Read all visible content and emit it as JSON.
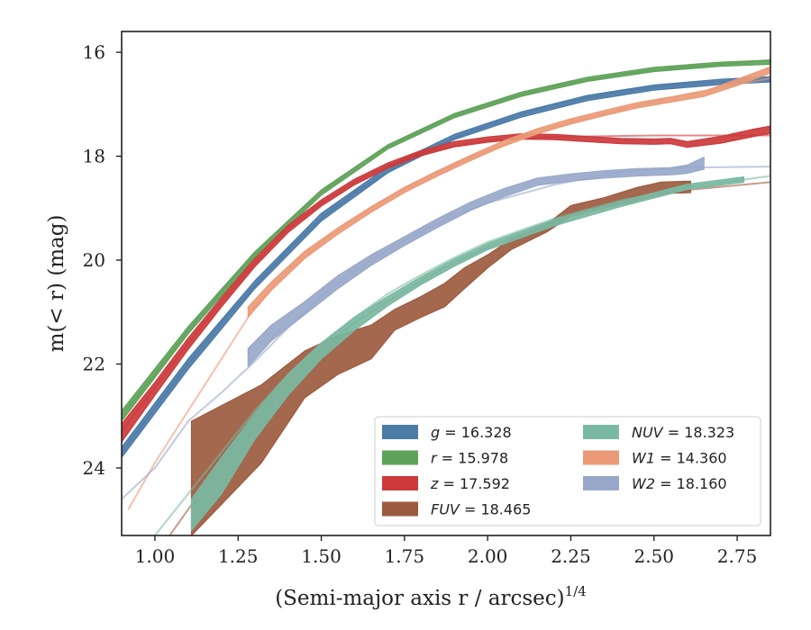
{
  "chart_data": {
    "type": "line",
    "xlabel": "(Semi-major axis r / arcsec)",
    "xlabel_exponent": "1/4",
    "ylabel": "m(< r) (mag)",
    "xlim": [
      0.9,
      2.85
    ],
    "ylim": [
      25.3,
      15.6
    ],
    "y_inverted": true,
    "grid": false,
    "legend_placement": "lower-right",
    "x_ticks": [
      {
        "value": 1.0,
        "label": "1.00"
      },
      {
        "value": 1.25,
        "label": "1.25"
      },
      {
        "value": 1.5,
        "label": "1.50"
      },
      {
        "value": 1.75,
        "label": "1.75"
      },
      {
        "value": 2.0,
        "label": "2.00"
      },
      {
        "value": 2.25,
        "label": "2.25"
      },
      {
        "value": 2.5,
        "label": "2.50"
      },
      {
        "value": 2.75,
        "label": "2.75"
      }
    ],
    "y_ticks": [
      {
        "value": 16,
        "label": "16"
      },
      {
        "value": 18,
        "label": "18"
      },
      {
        "value": 20,
        "label": "20"
      },
      {
        "value": 22,
        "label": "22"
      },
      {
        "value": 24,
        "label": "24"
      }
    ],
    "series": [
      {
        "name": "g = 16.328",
        "legend_var": "g",
        "legend_value": "= 16.328",
        "color": "#4C7BA8",
        "model": [
          [
            0.9,
            23.7
          ],
          [
            1.0,
            22.85
          ],
          [
            1.1,
            22.0
          ],
          [
            1.2,
            21.2
          ],
          [
            1.3,
            20.5
          ],
          [
            1.4,
            19.8
          ],
          [
            1.5,
            19.2
          ],
          [
            1.6,
            18.7
          ],
          [
            1.7,
            18.3
          ],
          [
            1.8,
            17.95
          ],
          [
            1.9,
            17.65
          ],
          [
            2.0,
            17.4
          ],
          [
            2.2,
            17.0
          ],
          [
            2.4,
            16.75
          ],
          [
            2.6,
            16.6
          ],
          [
            2.85,
            16.52
          ]
        ],
        "band": [
          [
            0.9,
            23.8,
            23.6
          ],
          [
            1.1,
            22.1,
            21.9
          ],
          [
            1.3,
            20.55,
            20.4
          ],
          [
            1.5,
            19.25,
            19.1
          ],
          [
            1.7,
            18.32,
            18.2
          ],
          [
            1.9,
            17.68,
            17.58
          ],
          [
            2.1,
            17.25,
            17.15
          ],
          [
            2.3,
            16.93,
            16.83
          ],
          [
            2.5,
            16.73,
            16.63
          ],
          [
            2.7,
            16.62,
            16.52
          ],
          [
            2.85,
            16.57,
            16.47
          ]
        ]
      },
      {
        "name": "r = 15.978",
        "legend_var": "r",
        "legend_value": "= 15.978",
        "color": "#5FA35A",
        "model": [
          [
            0.9,
            23.0
          ],
          [
            1.0,
            22.2
          ],
          [
            1.1,
            21.35
          ],
          [
            1.2,
            20.6
          ],
          [
            1.3,
            19.9
          ],
          [
            1.4,
            19.25
          ],
          [
            1.5,
            18.7
          ],
          [
            1.6,
            18.22
          ],
          [
            1.7,
            17.82
          ],
          [
            1.8,
            17.5
          ],
          [
            1.9,
            17.22
          ],
          [
            2.0,
            17.0
          ],
          [
            2.2,
            16.65
          ],
          [
            2.4,
            16.42
          ],
          [
            2.6,
            16.28
          ],
          [
            2.85,
            16.15
          ]
        ],
        "band": [
          [
            0.9,
            23.1,
            22.9
          ],
          [
            1.1,
            21.42,
            21.28
          ],
          [
            1.3,
            19.96,
            19.84
          ],
          [
            1.5,
            18.75,
            18.65
          ],
          [
            1.7,
            17.86,
            17.78
          ],
          [
            1.9,
            17.26,
            17.18
          ],
          [
            2.1,
            16.85,
            16.77
          ],
          [
            2.3,
            16.56,
            16.48
          ],
          [
            2.5,
            16.37,
            16.29
          ],
          [
            2.7,
            16.27,
            16.19
          ],
          [
            2.85,
            16.23,
            16.15
          ]
        ]
      },
      {
        "name": "z = 17.592",
        "legend_var": "z",
        "legend_value": "= 17.592",
        "color": "#CC3A3C",
        "model": [
          [
            0.9,
            23.3
          ],
          [
            1.0,
            22.45
          ],
          [
            1.1,
            21.6
          ],
          [
            1.2,
            20.8
          ],
          [
            1.3,
            20.05
          ],
          [
            1.4,
            19.4
          ],
          [
            1.5,
            18.9
          ],
          [
            1.6,
            18.5
          ],
          [
            1.7,
            18.18
          ],
          [
            1.8,
            17.95
          ],
          [
            1.9,
            17.8
          ],
          [
            2.0,
            17.7
          ],
          [
            2.2,
            17.63
          ],
          [
            2.5,
            17.6
          ],
          [
            2.85,
            17.6
          ]
        ],
        "band": [
          [
            0.9,
            23.5,
            23.15
          ],
          [
            1.0,
            22.6,
            22.35
          ],
          [
            1.1,
            21.72,
            21.5
          ],
          [
            1.2,
            20.9,
            20.72
          ],
          [
            1.3,
            20.13,
            19.97
          ],
          [
            1.4,
            19.47,
            19.33
          ],
          [
            1.5,
            18.96,
            18.84
          ],
          [
            1.6,
            18.55,
            18.44
          ],
          [
            1.7,
            18.23,
            18.13
          ],
          [
            1.8,
            17.99,
            17.89
          ],
          [
            1.9,
            17.82,
            17.72
          ],
          [
            2.0,
            17.73,
            17.63
          ],
          [
            2.1,
            17.67,
            17.57
          ],
          [
            2.2,
            17.68,
            17.58
          ],
          [
            2.3,
            17.72,
            17.62
          ],
          [
            2.4,
            17.76,
            17.66
          ],
          [
            2.5,
            17.77,
            17.67
          ],
          [
            2.55,
            17.76,
            17.66
          ],
          [
            2.6,
            17.83,
            17.72
          ],
          [
            2.7,
            17.75,
            17.62
          ],
          [
            2.8,
            17.62,
            17.48
          ],
          [
            2.85,
            17.56,
            17.42
          ]
        ]
      },
      {
        "name": "FUV = 18.465",
        "legend_var": "FUV",
        "legend_value": "= 18.465",
        "color": "#9C5B3F",
        "model": [
          [
            0.9,
            26.5
          ],
          [
            1.0,
            25.7
          ],
          [
            1.1,
            24.8
          ],
          [
            1.2,
            23.9
          ],
          [
            1.3,
            23.0
          ],
          [
            1.4,
            22.3
          ],
          [
            1.5,
            21.7
          ],
          [
            1.6,
            21.2
          ],
          [
            1.7,
            20.8
          ],
          [
            1.8,
            20.4
          ],
          [
            1.9,
            20.05
          ],
          [
            2.0,
            19.75
          ],
          [
            2.2,
            19.25
          ],
          [
            2.4,
            18.9
          ],
          [
            2.6,
            18.65
          ],
          [
            2.85,
            18.5
          ]
        ],
        "band": [
          [
            1.11,
            23.1,
            25.3
          ],
          [
            1.2,
            22.8,
            24.7
          ],
          [
            1.32,
            22.4,
            23.9
          ],
          [
            1.45,
            21.75,
            22.65
          ],
          [
            1.55,
            21.45,
            22.2
          ],
          [
            1.65,
            21.25,
            21.9
          ],
          [
            1.72,
            20.95,
            21.35
          ],
          [
            1.8,
            20.7,
            21.1
          ],
          [
            1.87,
            20.45,
            20.9
          ],
          [
            1.93,
            20.15,
            20.55
          ],
          [
            2.0,
            19.9,
            20.15
          ],
          [
            2.07,
            19.6,
            19.8
          ],
          [
            2.18,
            19.3,
            19.45
          ],
          [
            2.25,
            18.95,
            19.15
          ],
          [
            2.35,
            18.8,
            19.0
          ],
          [
            2.45,
            18.6,
            18.85
          ],
          [
            2.52,
            18.5,
            18.72
          ],
          [
            2.61,
            18.48,
            18.7
          ]
        ]
      },
      {
        "name": "NUV = 18.323",
        "legend_var": "NUV",
        "legend_value": "= 18.323",
        "color": "#79B9A2",
        "model": [
          [
            0.9,
            26.0
          ],
          [
            1.0,
            25.3
          ],
          [
            1.1,
            24.5
          ],
          [
            1.2,
            23.7
          ],
          [
            1.3,
            22.9
          ],
          [
            1.4,
            22.2
          ],
          [
            1.5,
            21.6
          ],
          [
            1.6,
            21.1
          ],
          [
            1.7,
            20.65
          ],
          [
            1.8,
            20.28
          ],
          [
            1.9,
            19.95
          ],
          [
            2.0,
            19.65
          ],
          [
            2.2,
            19.2
          ],
          [
            2.4,
            18.85
          ],
          [
            2.6,
            18.6
          ],
          [
            2.85,
            18.38
          ]
        ],
        "band": [
          [
            1.11,
            24.6,
            25.2
          ],
          [
            1.2,
            23.8,
            24.5
          ],
          [
            1.3,
            22.95,
            23.45
          ],
          [
            1.4,
            22.2,
            22.6
          ],
          [
            1.5,
            21.6,
            21.9
          ],
          [
            1.6,
            21.1,
            21.35
          ],
          [
            1.7,
            20.7,
            20.88
          ],
          [
            1.8,
            20.32,
            20.47
          ],
          [
            1.9,
            19.98,
            20.12
          ],
          [
            2.0,
            19.68,
            19.8
          ],
          [
            2.2,
            19.22,
            19.34
          ],
          [
            2.4,
            18.87,
            18.97
          ],
          [
            2.6,
            18.54,
            18.64
          ],
          [
            2.77,
            18.4,
            18.5
          ]
        ]
      },
      {
        "name": "W1 = 14.360",
        "legend_var": "W1",
        "legend_value": "= 14.360",
        "color": "#EB9A77",
        "model": [
          [
            0.92,
            24.8
          ],
          [
            1.0,
            23.9
          ],
          [
            1.1,
            22.9
          ],
          [
            1.2,
            21.9
          ],
          [
            1.3,
            20.9
          ],
          [
            1.4,
            20.2
          ],
          [
            1.5,
            19.65
          ],
          [
            1.6,
            19.2
          ],
          [
            1.7,
            18.8
          ],
          [
            1.8,
            18.45
          ],
          [
            1.9,
            18.15
          ],
          [
            2.0,
            17.9
          ],
          [
            2.2,
            17.45
          ],
          [
            2.4,
            17.1
          ],
          [
            2.6,
            16.8
          ],
          [
            2.85,
            16.5
          ]
        ],
        "band": [
          [
            1.28,
            21.1,
            20.9
          ],
          [
            1.35,
            20.58,
            20.42
          ],
          [
            1.45,
            19.97,
            19.83
          ],
          [
            1.55,
            19.5,
            19.38
          ],
          [
            1.65,
            19.08,
            18.97
          ],
          [
            1.75,
            18.7,
            18.6
          ],
          [
            1.85,
            18.38,
            18.28
          ],
          [
            1.95,
            18.08,
            17.98
          ],
          [
            2.05,
            17.8,
            17.7
          ],
          [
            2.15,
            17.57,
            17.47
          ],
          [
            2.25,
            17.38,
            17.28
          ],
          [
            2.35,
            17.22,
            17.12
          ],
          [
            2.45,
            17.07,
            16.97
          ],
          [
            2.55,
            16.96,
            16.86
          ],
          [
            2.65,
            16.85,
            16.75
          ],
          [
            2.75,
            16.64,
            16.52
          ],
          [
            2.85,
            16.4,
            16.28
          ]
        ]
      },
      {
        "name": "W2 = 18.160",
        "legend_var": "W2",
        "legend_value": "= 18.160",
        "color": "#98A8CA",
        "model": [
          [
            0.9,
            24.6
          ],
          [
            1.0,
            24.0
          ],
          [
            1.1,
            23.1
          ],
          [
            1.2,
            22.55
          ],
          [
            1.3,
            21.95
          ],
          [
            1.4,
            21.3
          ],
          [
            1.5,
            20.7
          ],
          [
            1.6,
            20.2
          ],
          [
            1.7,
            19.8
          ],
          [
            1.8,
            19.45
          ],
          [
            1.9,
            19.15
          ],
          [
            2.0,
            18.9
          ],
          [
            2.2,
            18.55
          ],
          [
            2.4,
            18.3
          ],
          [
            2.6,
            18.22
          ],
          [
            2.85,
            18.2
          ]
        ],
        "band": [
          [
            1.28,
            21.7,
            22.05
          ],
          [
            1.35,
            21.25,
            21.55
          ],
          [
            1.45,
            20.8,
            21.05
          ],
          [
            1.55,
            20.3,
            20.55
          ],
          [
            1.65,
            19.9,
            20.1
          ],
          [
            1.75,
            19.55,
            19.72
          ],
          [
            1.85,
            19.2,
            19.37
          ],
          [
            1.95,
            18.88,
            19.04
          ],
          [
            2.05,
            18.62,
            18.78
          ],
          [
            2.15,
            18.42,
            18.56
          ],
          [
            2.25,
            18.34,
            18.48
          ],
          [
            2.35,
            18.28,
            18.42
          ],
          [
            2.45,
            18.24,
            18.38
          ],
          [
            2.55,
            18.22,
            18.36
          ],
          [
            2.6,
            18.17,
            18.33
          ],
          [
            2.65,
            18.02,
            18.25
          ]
        ]
      }
    ]
  }
}
